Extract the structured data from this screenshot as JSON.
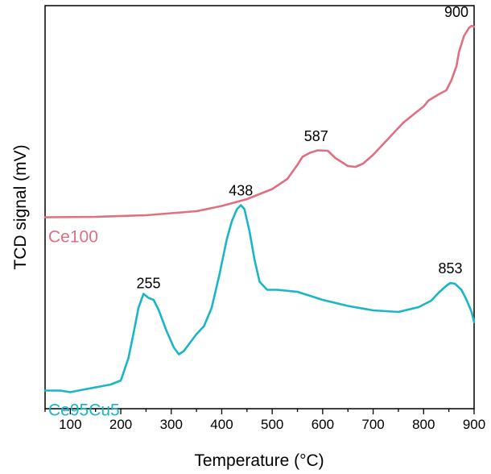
{
  "chart_data": {
    "type": "line",
    "xlabel": "Temperature (°C)",
    "ylabel": "TCD signal (mV)",
    "xlim": [
      50,
      900
    ],
    "ylim": [
      0,
      100
    ],
    "y_ticks_labeled": false,
    "x_ticks": [
      100,
      200,
      300,
      400,
      500,
      600,
      700,
      800,
      900
    ],
    "grid": false,
    "legend": "none",
    "series": [
      {
        "name": "Ce100",
        "color": "#e07080",
        "x": [
          50,
          150,
          250,
          350,
          400,
          450,
          500,
          530,
          550,
          560,
          575,
          590,
          610,
          625,
          650,
          665,
          680,
          700,
          730,
          760,
          790,
          800,
          810,
          830,
          845,
          855,
          865,
          870,
          880,
          890,
          895,
          900
        ],
        "values": [
          47.5,
          47.6,
          48.0,
          49.0,
          50.3,
          52.0,
          54.5,
          57.0,
          60.5,
          62.5,
          63.5,
          64.1,
          64.0,
          62.2,
          60.2,
          60.0,
          60.8,
          63.0,
          67.0,
          71.0,
          74.0,
          75.0,
          76.5,
          78.0,
          79.0,
          81.5,
          85.0,
          88.5,
          92.5,
          94.5,
          95.0,
          94.8
        ],
        "peaks": [
          {
            "x": 587,
            "label": "587"
          },
          {
            "x": 900,
            "label": "900"
          }
        ]
      },
      {
        "name": "Ce95Cu5",
        "color": "#1ab5c8",
        "x": [
          50,
          80,
          100,
          120,
          150,
          180,
          200,
          215,
          225,
          235,
          245,
          255,
          265,
          275,
          290,
          305,
          315,
          325,
          335,
          350,
          365,
          380,
          395,
          410,
          420,
          430,
          438,
          445,
          455,
          465,
          475,
          490,
          510,
          550,
          600,
          650,
          700,
          750,
          790,
          815,
          830,
          845,
          853,
          862,
          875,
          885,
          895,
          900
        ],
        "values": [
          4.5,
          4.5,
          4.1,
          4.6,
          5.3,
          6.0,
          7.0,
          12.5,
          18.5,
          25.0,
          28.5,
          27.5,
          27.0,
          24.5,
          19.5,
          15.2,
          13.5,
          14.3,
          16.0,
          18.5,
          20.5,
          25.0,
          33.0,
          42.0,
          46.5,
          49.5,
          50.5,
          49.5,
          44.0,
          37.0,
          31.5,
          29.5,
          29.5,
          29.0,
          27.0,
          25.5,
          24.4,
          24.0,
          25.2,
          26.8,
          28.8,
          30.5,
          31.2,
          31.0,
          29.5,
          27.0,
          24.0,
          21.5
        ],
        "peaks": [
          {
            "x": 255,
            "label": "255"
          },
          {
            "x": 438,
            "label": "438"
          },
          {
            "x": 853,
            "label": "853"
          }
        ]
      }
    ]
  }
}
